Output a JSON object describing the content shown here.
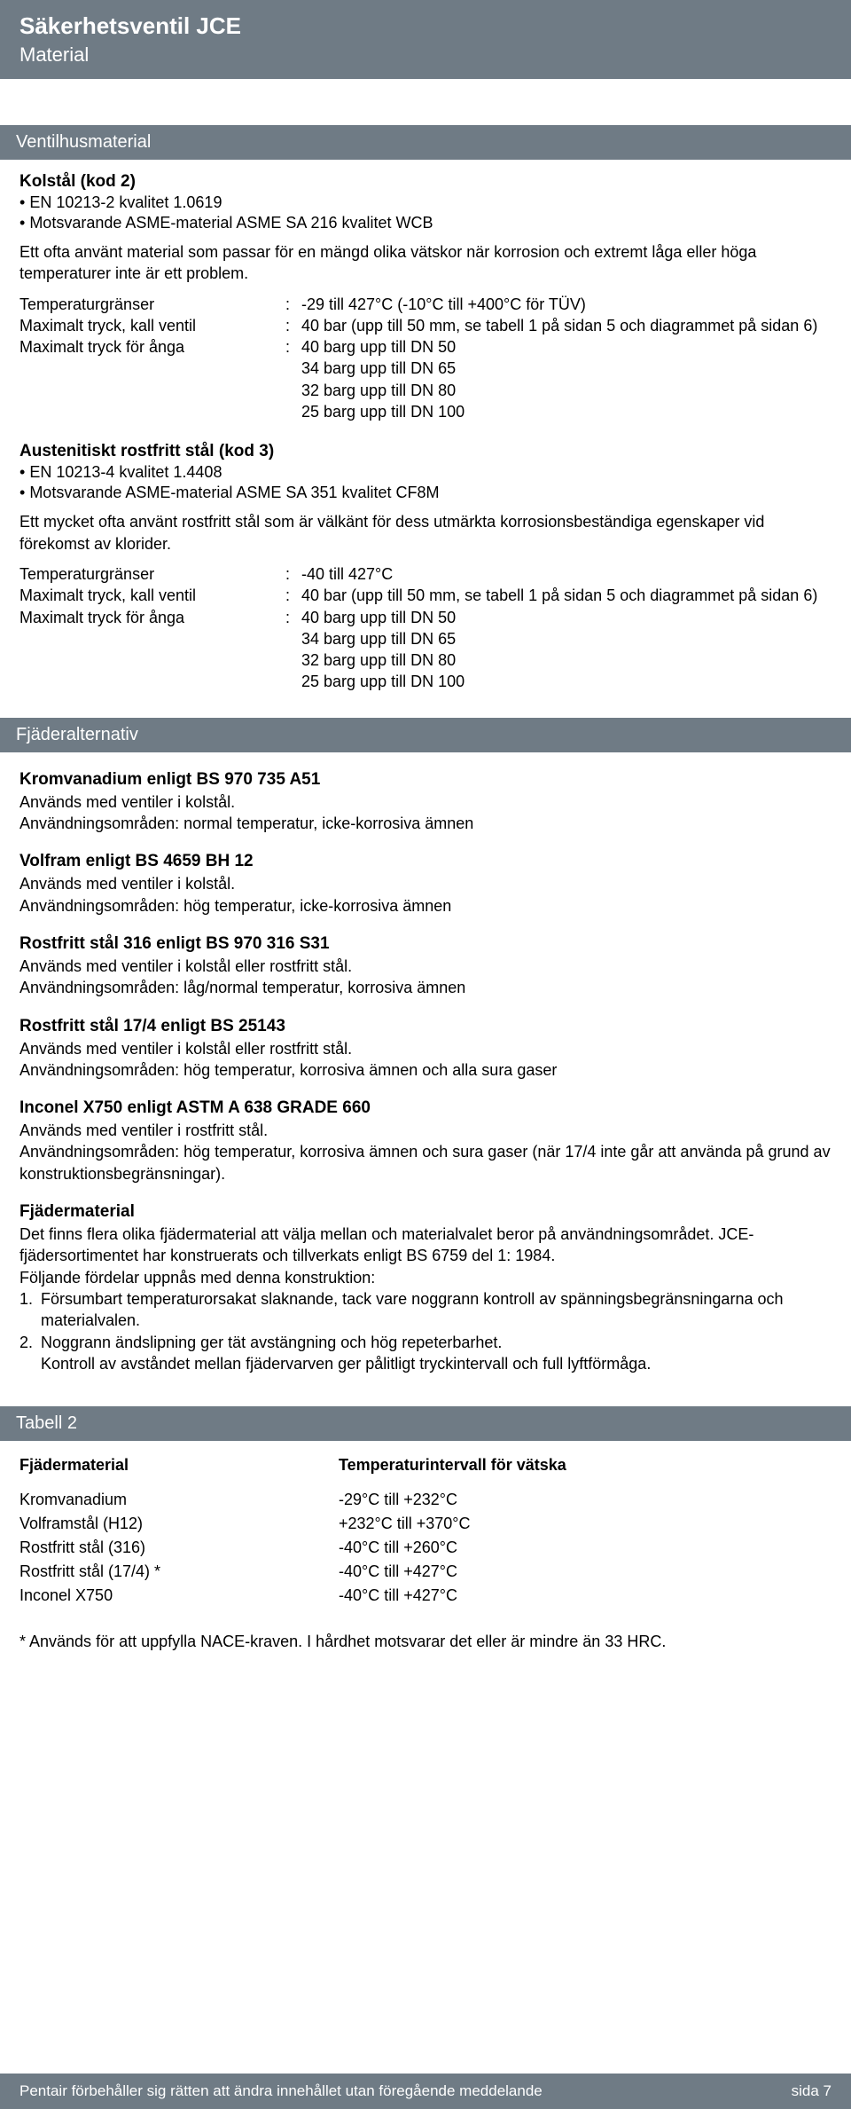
{
  "colors": {
    "bar_bg": "#6f7b85",
    "bar_fg": "#ffffff",
    "text": "#000000",
    "page_bg": "#ffffff"
  },
  "header": {
    "title": "Säkerhetsventil JCE",
    "subtitle": "Material"
  },
  "ventilhus": {
    "bar": "Ventilhusmaterial",
    "kolstal": {
      "heading": "Kolstål (kod 2)",
      "bullets": [
        "EN 10213-2 kvalitet 1.0619",
        "Motsvarande ASME-material ASME SA 216 kvalitet WCB"
      ],
      "para": "Ett ofta använt material som passar för en mängd olika vätskor när korrosion och extremt låga eller höga temperaturer inte är ett problem.",
      "specs": [
        {
          "label": "Temperaturgränser",
          "value": "-29 till 427°C (-10°C till +400°C för TÜV)"
        },
        {
          "label": "Maximalt tryck, kall ventil",
          "value": "40 bar (upp till 50 mm, se tabell 1 på sidan 5 och diagrammet på sidan 6)"
        },
        {
          "label": "Maximalt tryck för ånga",
          "value": "40 barg upp till DN 50\n34 barg upp till DN 65\n32 barg upp till DN 80\n25 barg upp till DN 100"
        }
      ]
    },
    "austenit": {
      "heading": "Austenitiskt rostfritt stål (kod 3)",
      "bullets": [
        "EN 10213-4 kvalitet 1.4408",
        "Motsvarande ASME-material ASME SA 351 kvalitet CF8M"
      ],
      "para": "Ett mycket ofta använt rostfritt stål som är välkänt för dess utmärkta korrosionsbeständiga egenskaper vid förekomst av klorider.",
      "specs": [
        {
          "label": "Temperaturgränser",
          "value": "-40 till 427°C"
        },
        {
          "label": "Maximalt tryck, kall ventil",
          "value": "40 bar (upp till 50 mm, se tabell 1 på sidan 5 och diagrammet på sidan 6)"
        },
        {
          "label": "Maximalt tryck för ånga",
          "value": "40 barg upp till DN 50\n34 barg upp till DN 65\n32 barg upp till DN 80\n25 barg upp till DN 100"
        }
      ]
    }
  },
  "fjader": {
    "bar": "Fjäderalternativ",
    "items": [
      {
        "heading": "Kromvanadium enligt BS 970 735 A51",
        "lines": [
          "Används med ventiler i kolstål.",
          "Användningsområden: normal temperatur, icke-korrosiva ämnen"
        ]
      },
      {
        "heading": "Volfram enligt BS 4659 BH 12",
        "lines": [
          "Används med ventiler i kolstål.",
          "Användningsområden: hög temperatur, icke-korrosiva ämnen"
        ]
      },
      {
        "heading": "Rostfritt stål 316 enligt BS 970 316 S31",
        "lines": [
          "Används med ventiler i kolstål eller rostfritt stål.",
          "Användningsområden: låg/normal temperatur, korrosiva ämnen"
        ]
      },
      {
        "heading": "Rostfritt stål 17/4 enligt BS 25143",
        "lines": [
          "Används med ventiler i kolstål eller rostfritt stål.",
          "Användningsområden: hög temperatur, korrosiva ämnen och alla sura gaser"
        ]
      },
      {
        "heading": "Inconel X750 enligt ASTM A 638 GRADE 660",
        "lines": [
          "Används med ventiler i rostfritt stål.",
          "Användningsområden: hög temperatur, korrosiva ämnen och sura gaser (när 17/4 inte går att använda på grund av konstruktionsbegränsningar)."
        ]
      }
    ],
    "material": {
      "heading": "Fjädermaterial",
      "intro": "Det finns flera olika fjädermaterial att välja mellan och materialvalet beror på användningsområdet. JCE-fjädersortimentet har konstruerats och tillverkats enligt BS 6759 del 1: 1984.",
      "lead": "Följande fördelar uppnås med denna konstruktion:",
      "num1": "Försumbart temperaturorsakat slaknande, tack vare noggrann kontroll av spänningsbegränsningarna och materialvalen.",
      "num2a": "Noggrann ändslipning ger tät avstängning och hög repeterbarhet.",
      "num2b": "Kontroll av avståndet mellan fjädervarven ger pålitligt tryckintervall och full lyftförmåga."
    }
  },
  "tabell2": {
    "bar": "Tabell 2",
    "col1_head": "Fjädermaterial",
    "col2_head": "Temperaturintervall för vätska",
    "rows": [
      {
        "c1": "Kromvanadium",
        "c2": "-29°C till +232°C"
      },
      {
        "c1": "Volframstål (H12)",
        "c2": "+232°C till +370°C"
      },
      {
        "c1": "Rostfritt stål (316)",
        "c2": "-40°C till +260°C"
      },
      {
        "c1": "Rostfritt stål (17/4) *",
        "c2": "-40°C till +427°C"
      },
      {
        "c1": "Inconel X750",
        "c2": "-40°C till +427°C"
      }
    ],
    "note": "* Används för att uppfylla NACE-kraven. I hårdhet motsvarar det eller är mindre än 33 HRC."
  },
  "footer": {
    "left": "Pentair förbehåller sig rätten att ändra innehållet utan föregående meddelande",
    "right": "sida 7"
  }
}
